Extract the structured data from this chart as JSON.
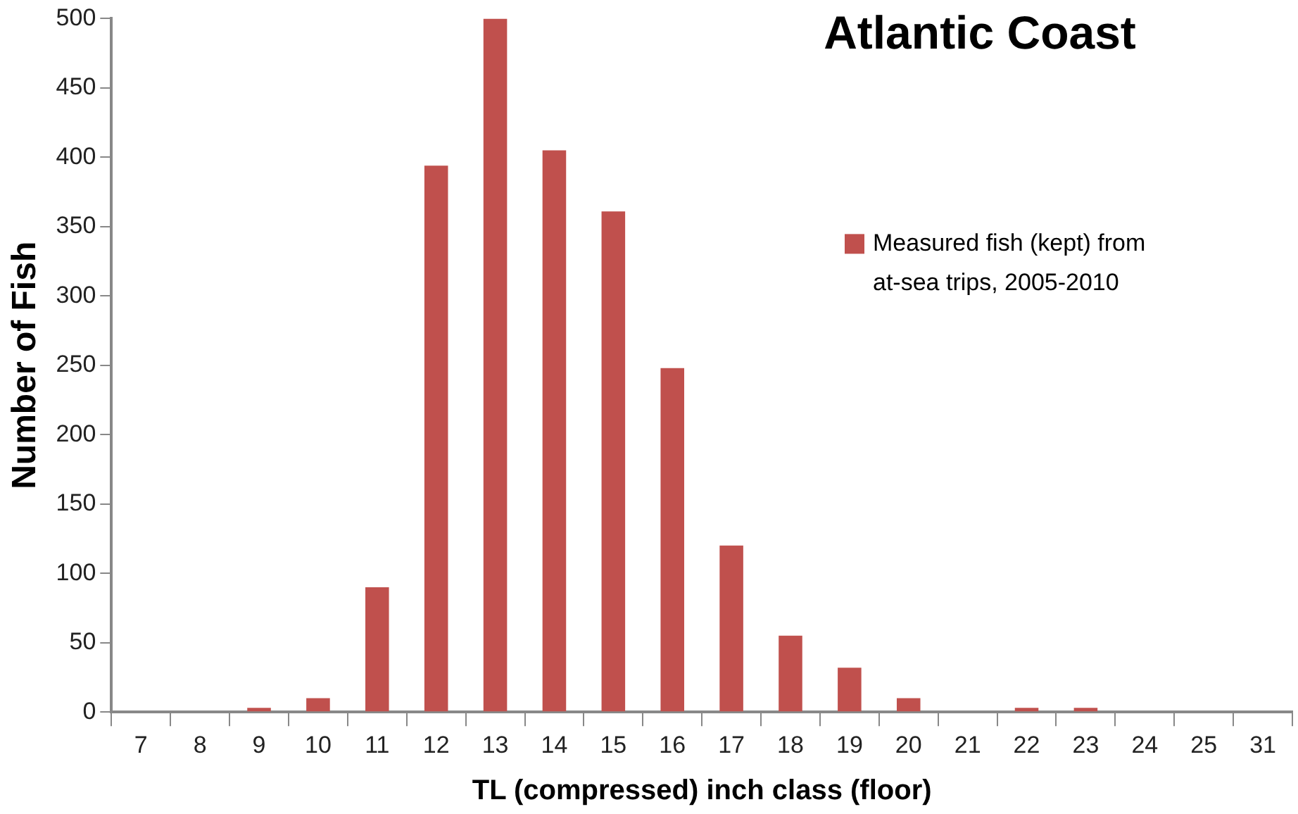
{
  "chart_data": {
    "type": "bar",
    "title": "Atlantic Coast",
    "xlabel": "TL (compressed) inch class (floor)",
    "ylabel": "Number of Fish",
    "categories": [
      "7",
      "8",
      "9",
      "10",
      "11",
      "12",
      "13",
      "14",
      "15",
      "16",
      "17",
      "18",
      "19",
      "20",
      "21",
      "22",
      "23",
      "24",
      "25",
      "31"
    ],
    "series": [
      {
        "name": "Measured fish (kept) from at-sea trips, 2005-2010",
        "color": "#c0504d",
        "values": [
          0,
          0,
          3,
          10,
          90,
          394,
          500,
          405,
          361,
          248,
          120,
          55,
          32,
          10,
          0,
          3,
          3,
          0,
          0,
          0
        ]
      }
    ],
    "ylim": [
      0,
      500
    ],
    "yticks": [
      0,
      50,
      100,
      150,
      200,
      250,
      300,
      350,
      400,
      450,
      500
    ],
    "grid": false,
    "legend": "top right"
  }
}
